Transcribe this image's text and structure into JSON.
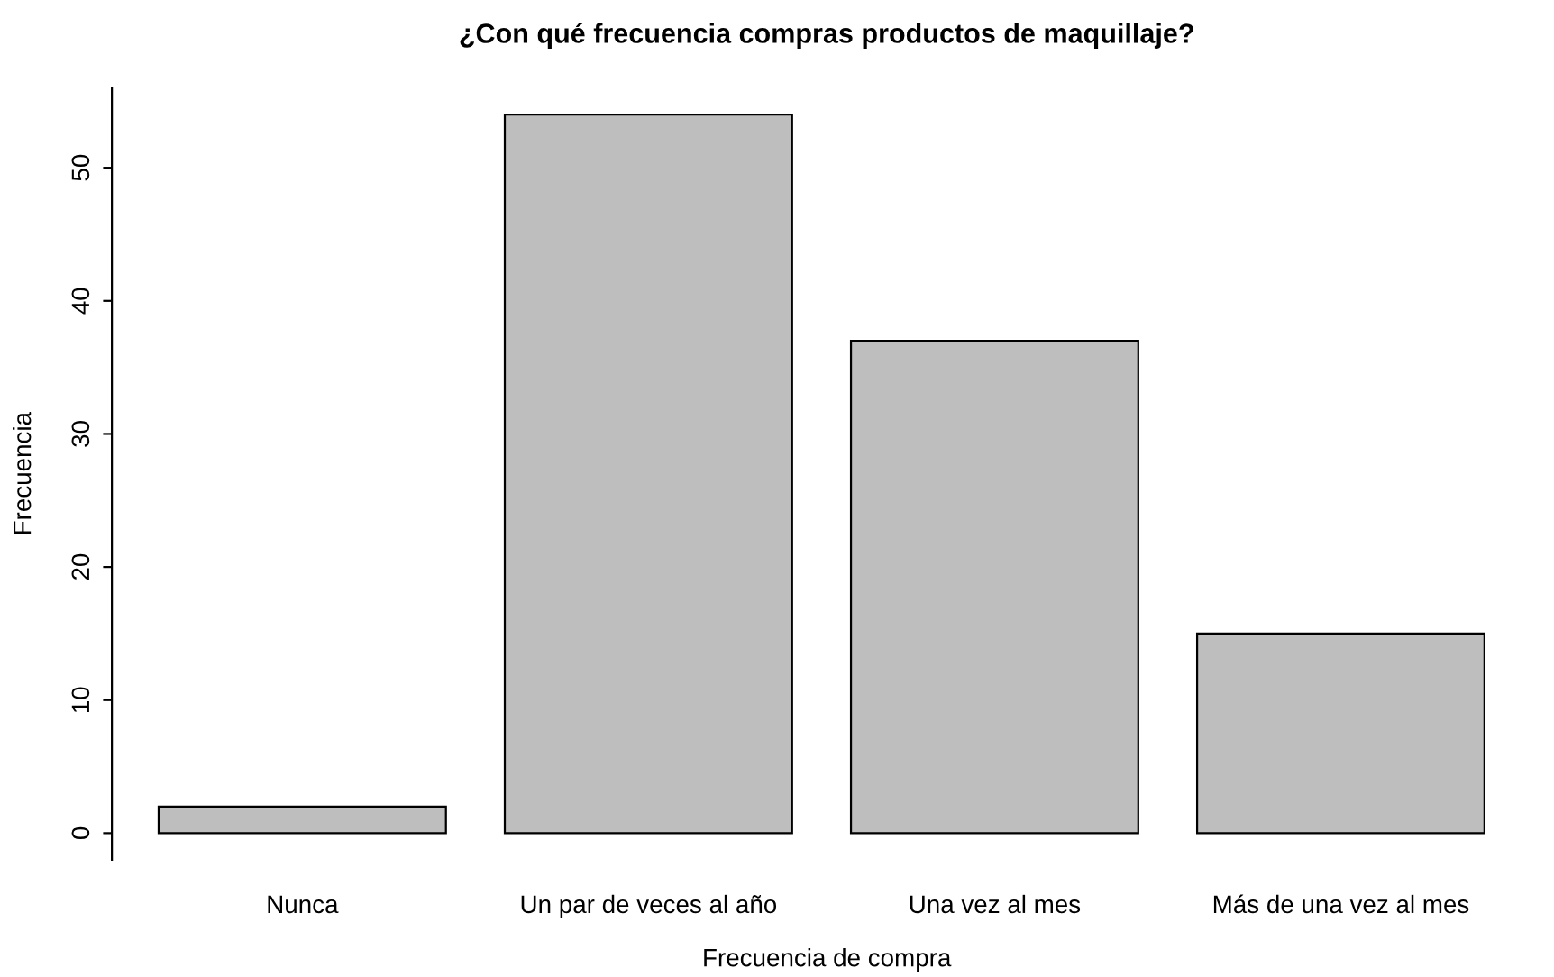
{
  "chart_data": {
    "type": "bar",
    "title": "¿Con qué frecuencia compras productos de maquillaje?",
    "xlabel": "Frecuencia de compra",
    "ylabel": "Frecuencia",
    "categories": [
      "Nunca",
      "Un par de veces al año",
      "Una vez al mes",
      "Más de una vez al mes"
    ],
    "values": [
      2,
      54,
      37,
      15
    ],
    "color": "#bebebe",
    "ylim": [
      -2,
      56
    ],
    "yticks": [
      0,
      10,
      20,
      30,
      40,
      50
    ],
    "grid": false
  }
}
